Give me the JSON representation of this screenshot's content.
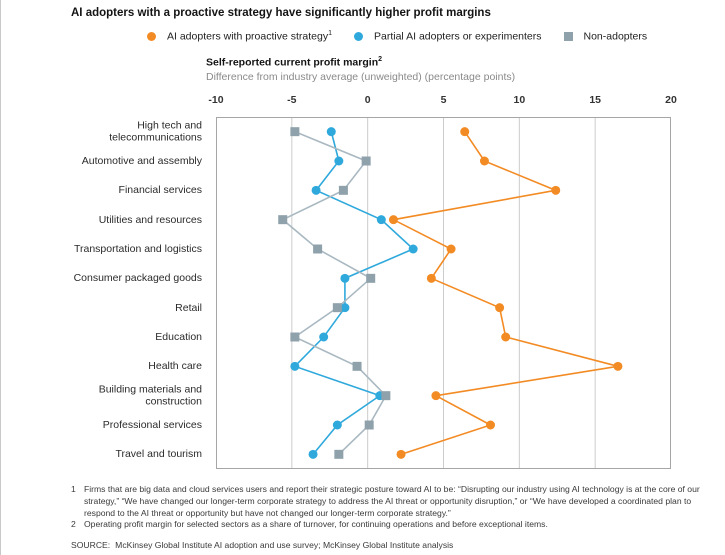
{
  "page": {
    "title": "AI adopters with a proactive strategy have significantly higher profit margins"
  },
  "legend": [
    {
      "label": "AI adopters with proactive strategy",
      "sup": "1",
      "marker": "circle",
      "color": "#F38B24"
    },
    {
      "label": "Partial AI adopters or experimenters",
      "sup": "",
      "marker": "circle",
      "color": "#2FA9DC"
    },
    {
      "label": "Non-adopters",
      "sup": "",
      "marker": "square",
      "color": "#8FA2AC"
    }
  ],
  "chart_data": {
    "type": "scatter",
    "title": "Self-reported current profit margin",
    "title_sup": "2",
    "subtitle": "Difference from industry average (unweighted) (percentage points)",
    "xlim": [
      -10,
      20
    ],
    "x_ticks": [
      -10,
      -5,
      0,
      5,
      10,
      15,
      20
    ],
    "grid": true,
    "legend_position": "top",
    "connected_rows": true,
    "categories": [
      "High tech and telecommunications",
      "Automotive and assembly",
      "Financial services",
      "Utilities and resources",
      "Transportation and logistics",
      "Consumer packaged goods",
      "Retail",
      "Education",
      "Health care",
      "Building materials and construction",
      "Professional services",
      "Travel and tourism"
    ],
    "series": [
      {
        "name": "AI adopters with proactive strategy",
        "marker": "circle",
        "color": "#F38B24",
        "line_color": "#F38B24",
        "values": [
          6.4,
          7.7,
          12.4,
          1.7,
          5.5,
          4.2,
          8.7,
          9.1,
          16.5,
          4.5,
          8.1,
          2.2
        ]
      },
      {
        "name": "Partial AI adopters or experimenters",
        "marker": "circle",
        "color": "#2FA9DC",
        "line_color": "#2FA9DC",
        "values": [
          -2.4,
          -1.9,
          -3.4,
          0.9,
          3.0,
          -1.5,
          -1.5,
          -2.9,
          -4.8,
          0.8,
          -2.0,
          -3.6
        ]
      },
      {
        "name": "Non-adopters",
        "marker": "square",
        "color": "#8FA2AC",
        "line_color": "#A9B8C1",
        "values": [
          -4.8,
          -0.1,
          -1.6,
          -5.6,
          -3.3,
          0.2,
          -2.0,
          -4.8,
          -0.7,
          1.2,
          0.1,
          -1.9
        ]
      }
    ],
    "colors": {
      "gridline": "#cccccc",
      "plot_border": "#a6a6a6"
    }
  },
  "footnotes": [
    {
      "num": "1",
      "text": "Firms that are big data and cloud services users and report their strategic posture toward AI to be: “Disrupting our industry using AI technology is at the core of our strategy,” “We have changed our longer-term corporate strategy to address the AI threat or opportunity disruption,” or “We have developed a coordinated plan to respond to the AI threat or opportunity but have not changed our longer-term corporate strategy.”"
    },
    {
      "num": "2",
      "text": "Operating profit margin for selected sectors as a share of turnover, for continuing operations and before exceptional items."
    }
  ],
  "source": {
    "label": "SOURCE:",
    "text": "McKinsey Global Institute AI adoption and use survey; McKinsey Global Institute analysis"
  }
}
